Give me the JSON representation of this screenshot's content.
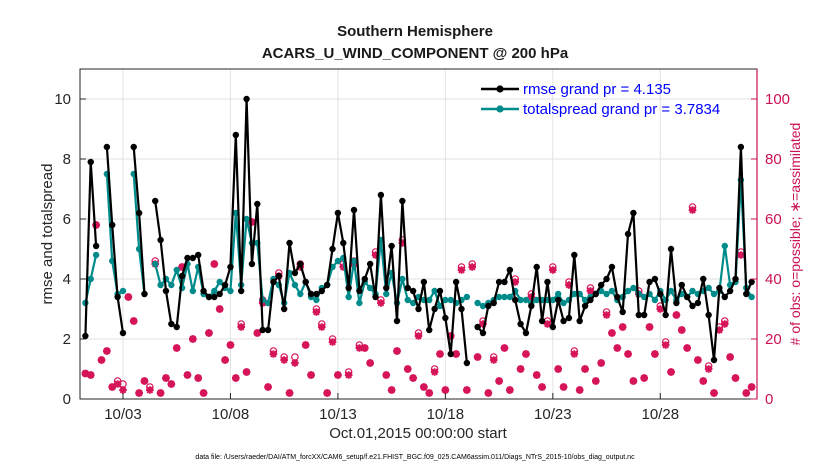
{
  "chart_data": {
    "type": "line",
    "title": "Southern Hemisphere",
    "subtitle": "ACARS_U_WIND_COMPONENT @ 200 hPa",
    "xlabel": "Oct.01,2015 00:00:00 start",
    "ylabel": "rmse and totalspread",
    "y2label": "# of obs: o=possible; ∗=assimilated",
    "footnote": "data file: /Users/raeder/DAI/ATM_forcXX/CAM6_setup/f.e21.FHIST_BGC.f09_025.CAM6assim.011/Diags_NTrS_2015-10/obs_diag_output.nc",
    "xlim": [
      1,
      32.5
    ],
    "ylim": [
      0,
      11
    ],
    "y2lim": [
      0,
      110
    ],
    "x_ticks": [
      3,
      8,
      13,
      18,
      23,
      28
    ],
    "x_tick_labels": [
      "10/03",
      "10/08",
      "10/13",
      "10/18",
      "10/23",
      "10/28"
    ],
    "y_ticks": [
      0,
      2,
      4,
      6,
      8,
      10
    ],
    "y2_ticks": [
      0,
      20,
      40,
      60,
      80,
      100
    ],
    "grid": true,
    "legend_position": "top-right",
    "colors": {
      "rmse": "#000000",
      "spread": "#008b8b",
      "obs": "#d6145a",
      "axis_right": "#cc1155",
      "legend_text": "#0000ff"
    },
    "x": [
      1.25,
      1.5,
      1.75,
      2.0,
      2.25,
      2.5,
      2.75,
      3.0,
      3.25,
      3.5,
      3.75,
      4.0,
      4.25,
      4.5,
      4.75,
      5.0,
      5.25,
      5.5,
      5.75,
      6.0,
      6.25,
      6.5,
      6.75,
      7.0,
      7.25,
      7.5,
      7.75,
      8.0,
      8.25,
      8.5,
      8.75,
      9.0,
      9.25,
      9.5,
      9.75,
      10.0,
      10.25,
      10.5,
      10.75,
      11.0,
      11.25,
      11.5,
      11.75,
      12.0,
      12.25,
      12.5,
      12.75,
      13.0,
      13.25,
      13.5,
      13.75,
      14.0,
      14.25,
      14.5,
      14.75,
      15.0,
      15.25,
      15.5,
      15.75,
      16.0,
      16.25,
      16.5,
      16.75,
      17.0,
      17.25,
      17.5,
      17.75,
      18.0,
      18.25,
      18.5,
      18.75,
      19.0,
      19.25,
      19.5,
      19.75,
      20.0,
      20.25,
      20.5,
      20.75,
      21.0,
      21.25,
      21.5,
      21.75,
      22.0,
      22.25,
      22.5,
      22.75,
      23.0,
      23.25,
      23.5,
      23.75,
      24.0,
      24.25,
      24.5,
      24.75,
      25.0,
      25.25,
      25.5,
      25.75,
      26.0,
      26.25,
      26.5,
      26.75,
      27.0,
      27.25,
      27.5,
      27.75,
      28.0,
      28.25,
      28.5,
      28.75,
      29.0,
      29.25,
      29.5,
      29.75,
      30.0,
      30.25,
      30.5,
      30.75,
      31.0,
      31.25,
      31.5,
      31.75,
      32.0,
      32.25
    ],
    "series": [
      {
        "name": "rmse grand pr = 4.135",
        "values": [
          2.1,
          7.9,
          5.1,
          null,
          8.4,
          5.8,
          3.4,
          2.2,
          null,
          8.4,
          6.2,
          3.5,
          null,
          6.6,
          5.3,
          3.6,
          2.5,
          2.4,
          4.1,
          4.7,
          4.7,
          4.8,
          3.6,
          3.4,
          3.4,
          3.5,
          3.8,
          4.4,
          8.8,
          3.6,
          10.0,
          4.5,
          6.5,
          2.3,
          2.3,
          3.9,
          4.1,
          3.0,
          5.2,
          4.2,
          4.5,
          3.9,
          3.5,
          3.5,
          3.6,
          3.8,
          5.0,
          6.2,
          5.2,
          3.7,
          6.3,
          3.6,
          4.0,
          4.5,
          3.4,
          6.8,
          3.7,
          5.1,
          2.6,
          6.6,
          3.7,
          3.6,
          3.0,
          3.9,
          2.3,
          3.0,
          3.6,
          2.7,
          1.5,
          3.9,
          3.0,
          1.2,
          null,
          2.4,
          2.2,
          3.1,
          3.2,
          3.9,
          3.9,
          4.3,
          3.3,
          2.5,
          2.2,
          3.1,
          4.4,
          2.6,
          3.9,
          2.4,
          3.3,
          2.6,
          2.7,
          4.8,
          2.6,
          3.1,
          3.3,
          3.5,
          3.8,
          4.0,
          4.4,
          3.4,
          2.9,
          5.5,
          6.2,
          2.8,
          2.8,
          3.9,
          4.0,
          3.5,
          2.8,
          5.0,
          3.2,
          3.8,
          3.4,
          3.1,
          3.2,
          4.0,
          2.8,
          1.3,
          3.7,
          3.4,
          3.6,
          4.0,
          8.4,
          3.5,
          3.9
        ]
      },
      {
        "name": "totalspread grand pr = 3.7834",
        "values": [
          3.2,
          4.0,
          4.8,
          null,
          7.5,
          4.6,
          3.5,
          3.6,
          null,
          7.5,
          5.0,
          3.5,
          null,
          4.5,
          3.8,
          4.0,
          3.8,
          4.3,
          3.7,
          4.5,
          3.6,
          4.4,
          3.5,
          3.4,
          3.6,
          3.9,
          3.7,
          3.6,
          6.2,
          3.8,
          6.0,
          5.2,
          5.2,
          3.3,
          3.2,
          4.0,
          3.8,
          3.2,
          4.2,
          3.8,
          3.5,
          3.9,
          3.4,
          3.3,
          3.7,
          3.8,
          4.4,
          4.6,
          4.7,
          3.4,
          4.6,
          3.2,
          3.9,
          3.7,
          3.5,
          5.3,
          3.5,
          4.2,
          3.2,
          4.0,
          3.3,
          3.2,
          3.4,
          3.3,
          3.3,
          3.6,
          3.1,
          3.3,
          3.3,
          3.2,
          3.3,
          3.4,
          null,
          3.2,
          3.1,
          3.2,
          3.3,
          3.4,
          3.4,
          3.4,
          3.6,
          3.3,
          3.3,
          3.2,
          3.3,
          3.3,
          3.3,
          3.3,
          3.5,
          3.2,
          3.3,
          3.5,
          3.5,
          3.3,
          3.4,
          3.5,
          3.6,
          3.5,
          3.6,
          3.3,
          3.4,
          3.6,
          3.7,
          3.5,
          3.4,
          3.5,
          3.3,
          3.6,
          3.3,
          3.6,
          3.3,
          3.5,
          3.4,
          3.6,
          3.5,
          3.6,
          3.7,
          3.5,
          3.6,
          5.1,
          3.8,
          3.9,
          7.3,
          3.7,
          3.4
        ]
      }
    ],
    "obs_counts": {
      "possible": [
        8.5,
        8,
        58,
        13,
        16,
        4,
        6,
        5,
        34,
        26,
        2,
        6,
        4,
        46,
        2,
        7,
        5,
        17,
        44,
        8,
        20,
        7,
        2,
        22,
        45,
        30,
        13,
        18,
        7,
        25,
        9,
        59,
        22,
        33,
        4,
        16,
        42,
        14,
        2,
        14,
        45,
        18,
        8,
        30,
        25,
        2,
        20,
        8,
        45,
        9,
        46,
        18,
        17,
        12,
        49,
        33,
        8,
        3,
        16,
        53,
        10,
        7,
        22,
        4,
        2,
        10,
        15,
        3,
        21,
        15,
        44,
        3,
        45,
        14,
        26,
        2,
        14,
        6,
        17,
        3,
        40,
        10,
        15,
        35,
        8,
        4,
        26,
        44,
        10,
        4,
        39,
        16,
        3,
        10,
        37,
        6,
        12,
        29,
        22,
        17,
        24,
        15,
        6,
        36,
        7,
        24,
        15,
        31,
        19,
        9,
        28,
        23,
        17,
        64,
        13,
        6,
        11,
        2,
        24,
        26,
        14,
        7,
        49,
        2,
        4
      ],
      "assimilated": [
        8.5,
        8,
        58,
        13,
        16,
        4,
        5,
        3,
        34,
        26,
        2,
        6,
        3,
        45,
        2,
        7,
        5,
        17,
        44,
        8,
        20,
        7,
        2,
        22,
        45,
        30,
        13,
        18,
        7,
        24,
        9,
        59,
        22,
        32,
        4,
        15,
        41,
        13,
        2,
        12,
        44,
        18,
        8,
        29,
        24,
        2,
        19,
        8,
        44,
        8,
        45,
        17,
        17,
        12,
        48,
        32,
        8,
        3,
        16,
        52,
        10,
        7,
        21,
        4,
        2,
        9,
        15,
        3,
        21,
        15,
        43,
        3,
        44,
        14,
        25,
        2,
        13,
        6,
        17,
        3,
        39,
        10,
        15,
        34,
        8,
        4,
        25,
        43,
        10,
        4,
        38,
        15,
        3,
        10,
        36,
        6,
        12,
        28,
        22,
        17,
        24,
        15,
        6,
        35,
        7,
        24,
        15,
        30,
        18,
        9,
        28,
        23,
        17,
        63,
        13,
        6,
        10,
        2,
        23,
        25,
        14,
        7,
        48,
        2,
        4
      ]
    }
  }
}
